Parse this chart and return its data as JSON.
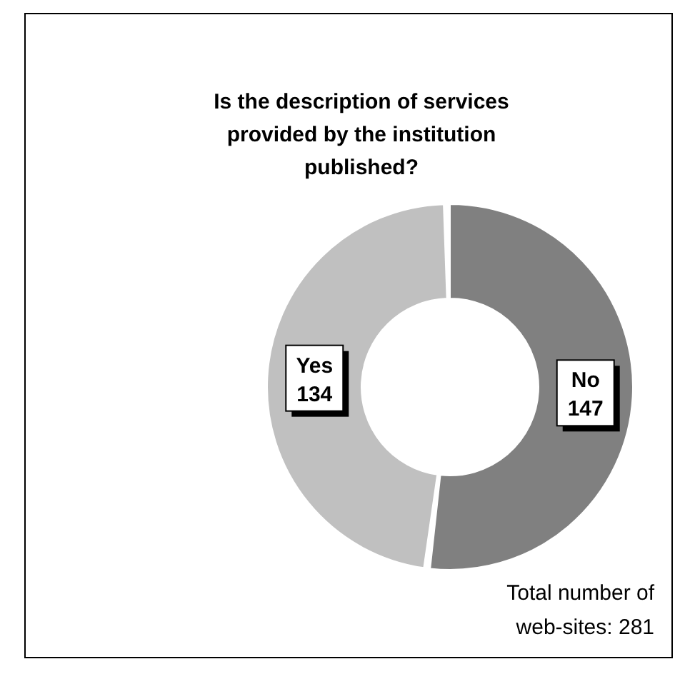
{
  "chart_data": {
    "type": "donut",
    "title": "Is the description of services provided by the institution published?",
    "categories": [
      "No",
      "Yes"
    ],
    "values": [
      147,
      134
    ],
    "colors": [
      "#808080",
      "#c0c0c0"
    ],
    "data_labels": true,
    "annotations": [
      "Total number of web-sites: 281"
    ]
  }
}
